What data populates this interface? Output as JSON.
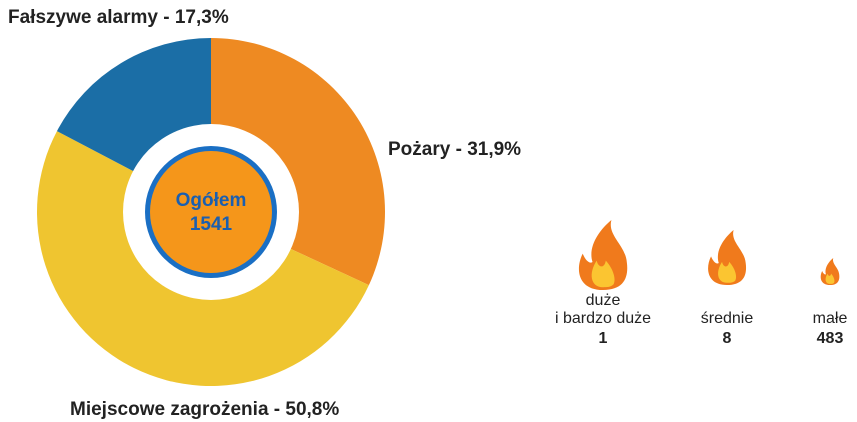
{
  "chart_data": {
    "type": "donut",
    "values": [
      31.9,
      50.8,
      17.3
    ],
    "value_labels": [
      "Pożary - 31,9%",
      "Miejscowe zagrożenia - 50,8%",
      "Fałszywe alarmy - 17,3%"
    ],
    "colors": [
      "#ee8a22",
      "#efc530",
      "#1b6ea6"
    ],
    "center_label": "Ogółem",
    "center_value": 1541
  },
  "fire_sizes": [
    {
      "label": [
        "duże",
        "i bardzo duże"
      ],
      "count": 1
    },
    {
      "label": [
        "średnie"
      ],
      "count": 8
    },
    {
      "label": [
        "małe"
      ],
      "count": 483
    }
  ]
}
